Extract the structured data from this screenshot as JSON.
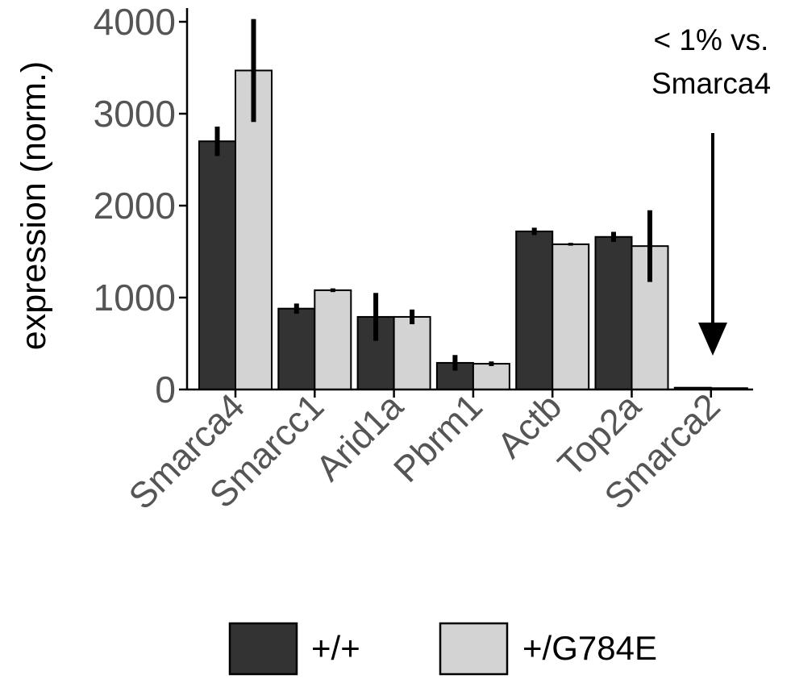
{
  "chart_data": {
    "type": "bar",
    "ylabel": "expression (norm.)",
    "ylim": [
      0,
      4100
    ],
    "yticks": [
      0,
      1000,
      2000,
      3000,
      4000
    ],
    "grid": false,
    "legend_position": "bottom",
    "categories": [
      "Smarca4",
      "Smarcc1",
      "Arid1a",
      "Pbrm1",
      "Actb",
      "Top2a",
      "Smarca2"
    ],
    "series": [
      {
        "name": "+/+",
        "color": "#333333",
        "values": [
          2700,
          880,
          790,
          290,
          1720,
          1660,
          20
        ],
        "error": [
          160,
          55,
          260,
          85,
          40,
          55,
          0
        ]
      },
      {
        "name": "+/G784E",
        "color": "#d3d3d3",
        "values": [
          3470,
          1080,
          790,
          280,
          1580,
          1560,
          15
        ],
        "error": [
          560,
          20,
          80,
          25,
          15,
          390,
          0
        ]
      }
    ],
    "annotation": {
      "lines": [
        "< 1% vs.",
        "Smarca4"
      ],
      "target_category": "Smarca2",
      "arrow": "down"
    }
  }
}
